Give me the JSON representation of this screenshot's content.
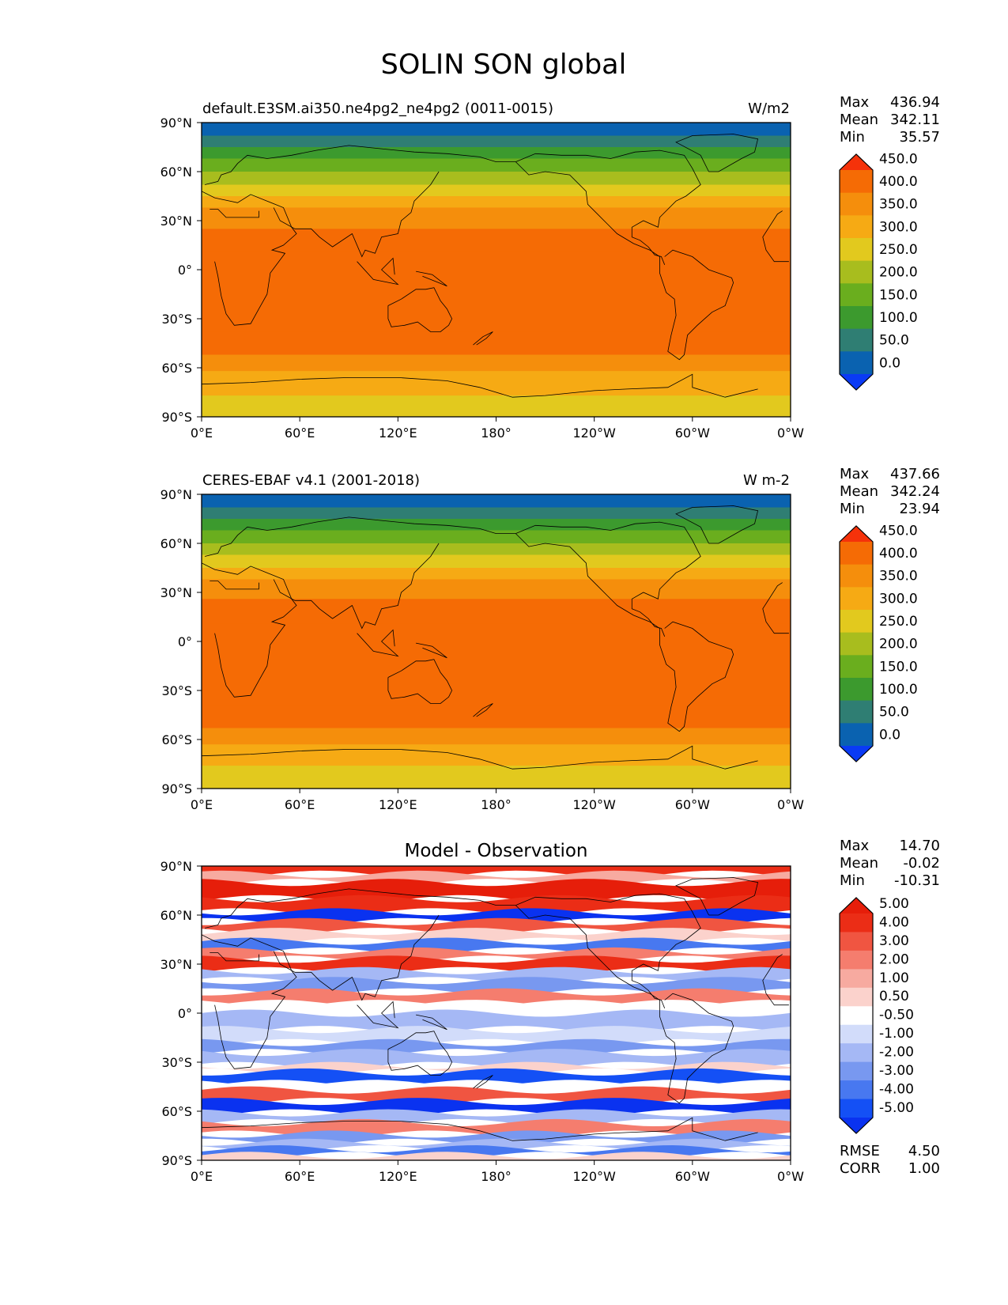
{
  "figure": {
    "title": "SOLIN SON global"
  },
  "x_ticks": [
    "0°E",
    "60°E",
    "120°E",
    "180°",
    "120°W",
    "60°W",
    "0°W"
  ],
  "y_ticks": [
    "90°N",
    "60°N",
    "30°N",
    "0°",
    "30°S",
    "60°S",
    "90°S"
  ],
  "stat_labels": {
    "max": "Max",
    "mean": "Mean",
    "min": "Min",
    "rmse": "RMSE",
    "corr": "CORR"
  },
  "panels": [
    {
      "id": "model",
      "title_left": "default.E3SM.ai350.ne4pg2_ne4pg2 (0011-0015)",
      "title_center": "",
      "units": "W/m2",
      "stats": {
        "max": "436.94",
        "mean": "342.11",
        "min": "35.57"
      },
      "colorbar_labels": [
        "0.0",
        "50.0",
        "100.0",
        "150.0",
        "200.0",
        "250.0",
        "300.0",
        "350.0",
        "400.0",
        "450.0"
      ]
    },
    {
      "id": "obs",
      "title_left": "CERES-EBAF v4.1 (2001-2018)",
      "title_center": "",
      "units": "W m-2",
      "stats": {
        "max": "437.66",
        "mean": "342.24",
        "min": "23.94"
      },
      "colorbar_labels": [
        "0.0",
        "50.0",
        "100.0",
        "150.0",
        "200.0",
        "250.0",
        "300.0",
        "350.0",
        "400.0",
        "450.0"
      ]
    },
    {
      "id": "diff",
      "title_left": "",
      "title_center": "Model - Observation",
      "units": "",
      "stats": {
        "max": "14.70",
        "mean": "-0.02",
        "min": "-10.31"
      },
      "extra_stats": {
        "rmse": "4.50",
        "corr": "1.00"
      },
      "colorbar_labels": [
        "-5.00",
        "-4.00",
        "-3.00",
        "-2.00",
        "-1.00",
        "-0.50",
        "0.50",
        "1.00",
        "2.00",
        "3.00",
        "4.00",
        "5.00"
      ]
    }
  ],
  "chart_data": [
    {
      "type": "heatmap",
      "title": "default.E3SM.ai350.ne4pg2_ne4pg2 (0011-0015)",
      "units": "W/m2",
      "xlim": [
        0,
        360
      ],
      "ylim": [
        -90,
        90
      ],
      "levels": [
        0,
        50,
        100,
        150,
        200,
        250,
        300,
        350,
        400,
        450
      ],
      "colors": [
        "#0a3af5",
        "#0a62b0",
        "#2f7e73",
        "#3c9a2e",
        "#6aae1e",
        "#a8bd1e",
        "#e2c91e",
        "#f6aa14",
        "#f58e0c",
        "#f56b05",
        "#f5320a"
      ],
      "zonal_profile": [
        {
          "lat_range": [
            82,
            90
          ],
          "value": 30
        },
        {
          "lat_range": [
            75,
            82
          ],
          "value": 80
        },
        {
          "lat_range": [
            68,
            75
          ],
          "value": 125
        },
        {
          "lat_range": [
            60,
            68
          ],
          "value": 175
        },
        {
          "lat_range": [
            52,
            60
          ],
          "value": 225
        },
        {
          "lat_range": [
            45,
            52
          ],
          "value": 275
        },
        {
          "lat_range": [
            38,
            45
          ],
          "value": 320
        },
        {
          "lat_range": [
            25,
            38
          ],
          "value": 370
        },
        {
          "lat_range": [
            11,
            25
          ],
          "value": 415
        },
        {
          "lat_range": [
            -38,
            11
          ],
          "value": 435
        },
        {
          "lat_range": [
            -52,
            -38
          ],
          "value": 420
        },
        {
          "lat_range": [
            -62,
            -52
          ],
          "value": 380
        },
        {
          "lat_range": [
            -77,
            -62
          ],
          "value": 340
        },
        {
          "lat_range": [
            -90,
            -77
          ],
          "value": 290
        }
      ]
    },
    {
      "type": "heatmap",
      "title": "CERES-EBAF v4.1 (2001-2018)",
      "units": "W m-2",
      "xlim": [
        0,
        360
      ],
      "ylim": [
        -90,
        90
      ],
      "levels": [
        0,
        50,
        100,
        150,
        200,
        250,
        300,
        350,
        400,
        450
      ],
      "colors": [
        "#0a3af5",
        "#0a62b0",
        "#2f7e73",
        "#3c9a2e",
        "#6aae1e",
        "#a8bd1e",
        "#e2c91e",
        "#f6aa14",
        "#f58e0c",
        "#f56b05",
        "#f5320a"
      ],
      "zonal_profile": [
        {
          "lat_range": [
            82,
            90
          ],
          "value": 30
        },
        {
          "lat_range": [
            75,
            82
          ],
          "value": 80
        },
        {
          "lat_range": [
            68,
            75
          ],
          "value": 125
        },
        {
          "lat_range": [
            60,
            68
          ],
          "value": 175
        },
        {
          "lat_range": [
            53,
            60
          ],
          "value": 225
        },
        {
          "lat_range": [
            45,
            53
          ],
          "value": 275
        },
        {
          "lat_range": [
            38,
            45
          ],
          "value": 320
        },
        {
          "lat_range": [
            26,
            38
          ],
          "value": 370
        },
        {
          "lat_range": [
            11,
            26
          ],
          "value": 415
        },
        {
          "lat_range": [
            -39,
            11
          ],
          "value": 435
        },
        {
          "lat_range": [
            -53,
            -39
          ],
          "value": 420
        },
        {
          "lat_range": [
            -63,
            -53
          ],
          "value": 380
        },
        {
          "lat_range": [
            -76,
            -63
          ],
          "value": 340
        },
        {
          "lat_range": [
            -90,
            -76
          ],
          "value": 290
        }
      ]
    },
    {
      "type": "heatmap",
      "title": "Model - Observation",
      "xlim": [
        0,
        360
      ],
      "ylim": [
        -90,
        90
      ],
      "levels": [
        -5,
        -4,
        -3,
        -2,
        -1,
        -0.5,
        0.5,
        1,
        2,
        3,
        4,
        5
      ],
      "colors": [
        "#0a32f0",
        "#1450f5",
        "#4878f0",
        "#7898f0",
        "#a5b8f5",
        "#d2dcfa",
        "#ffffff",
        "#fbd2cc",
        "#f7aaa0",
        "#f57d6e",
        "#f05541",
        "#eb2d16",
        "#e61e0a"
      ],
      "band_pattern": [
        {
          "lat_range": [
            85,
            90
          ],
          "value": 4.5
        },
        {
          "lat_range": [
            80,
            85
          ],
          "value": 1.5
        },
        {
          "lat_range": [
            70,
            80
          ],
          "value": 5.5
        },
        {
          "lat_range": [
            62,
            70
          ],
          "value": 4.5
        },
        {
          "lat_range": [
            56,
            62
          ],
          "value": -5.5
        },
        {
          "lat_range": [
            50,
            56
          ],
          "value": 3.5
        },
        {
          "lat_range": [
            44,
            50
          ],
          "value": 0.75
        },
        {
          "lat_range": [
            38,
            44
          ],
          "value": -3.5
        },
        {
          "lat_range": [
            33,
            38
          ],
          "value": 2.5
        },
        {
          "lat_range": [
            26,
            33
          ],
          "value": 4.5
        },
        {
          "lat_range": [
            20,
            26
          ],
          "value": -1.5
        },
        {
          "lat_range": [
            13,
            20
          ],
          "value": -2.5
        },
        {
          "lat_range": [
            6,
            13
          ],
          "value": 2.5
        },
        {
          "lat_range": [
            0,
            6
          ],
          "value": 0
        },
        {
          "lat_range": [
            -10,
            0
          ],
          "value": -1.5
        },
        {
          "lat_range": [
            -18,
            -10
          ],
          "value": -0.75
        },
        {
          "lat_range": [
            -24,
            -18
          ],
          "value": -2.5
        },
        {
          "lat_range": [
            -32,
            -24
          ],
          "value": -1.5
        },
        {
          "lat_range": [
            -36,
            -32
          ],
          "value": 0.75
        },
        {
          "lat_range": [
            -43,
            -36
          ],
          "value": -4.5
        },
        {
          "lat_range": [
            -47,
            -43
          ],
          "value": 0
        },
        {
          "lat_range": [
            -54,
            -47
          ],
          "value": 3.5
        },
        {
          "lat_range": [
            -61,
            -54
          ],
          "value": -5.5
        },
        {
          "lat_range": [
            -67,
            -61
          ],
          "value": -1.5
        },
        {
          "lat_range": [
            -74,
            -67
          ],
          "value": 2.5
        },
        {
          "lat_range": [
            -79,
            -74
          ],
          "value": -2.5
        },
        {
          "lat_range": [
            -83,
            -79
          ],
          "value": -1.5
        },
        {
          "lat_range": [
            -87,
            -83
          ],
          "value": -3.5
        },
        {
          "lat_range": [
            -90,
            -87
          ],
          "value": 0.75
        }
      ]
    }
  ]
}
